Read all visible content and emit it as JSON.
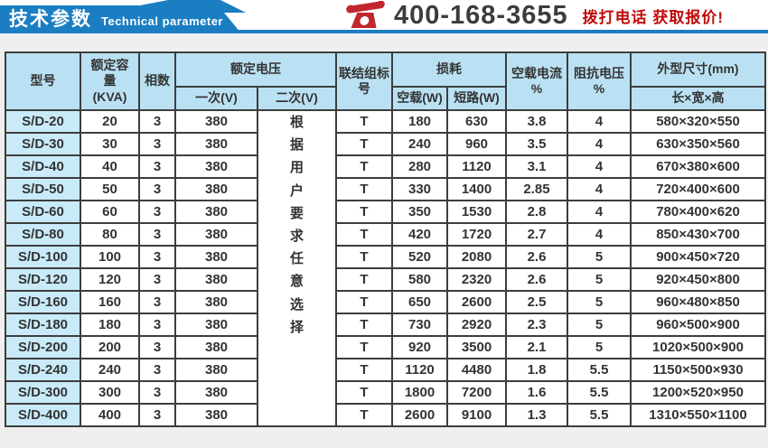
{
  "banner": {
    "title_zh": "技术参数",
    "title_en": "Technical parameter"
  },
  "contact": {
    "phone": "400-168-3655",
    "cta": "拨打电话 获取报价!"
  },
  "colors": {
    "banner_blue": "#1b7ec2",
    "header_bg": "#bae1f3",
    "model_bg": "#c9eaf9",
    "cta_red": "#c00a0a",
    "phone_icon_red": "#c1272d",
    "border": "#3d3d3d"
  },
  "table": {
    "headers": {
      "model": "型号",
      "capacity": "额定容\n量\n(KVA)",
      "phases": "相数",
      "rated_voltage": "额定电压",
      "primary": "一次(V)",
      "secondary": "二次(V)",
      "connection": "联结组标\n号",
      "loss": "损耗",
      "no_load_w": "空载(W)",
      "short_circuit_w": "短路(W)",
      "no_load_current": "空载电流\n%",
      "impedance_voltage": "阻抗电压\n%",
      "dimensions": "外型尺寸(mm)",
      "lwh": "长×宽×高"
    },
    "secondary_note": "根据用户要求任意选择",
    "rows": [
      [
        "S/D-20",
        "20",
        "3",
        "380",
        "T",
        "180",
        "630",
        "3.8",
        "4",
        "580×320×550"
      ],
      [
        "S/D-30",
        "30",
        "3",
        "380",
        "T",
        "240",
        "960",
        "3.5",
        "4",
        "630×350×560"
      ],
      [
        "S/D-40",
        "40",
        "3",
        "380",
        "T",
        "280",
        "1120",
        "3.1",
        "4",
        "670×380×600"
      ],
      [
        "S/D-50",
        "50",
        "3",
        "380",
        "T",
        "330",
        "1400",
        "2.85",
        "4",
        "720×400×600"
      ],
      [
        "S/D-60",
        "60",
        "3",
        "380",
        "T",
        "350",
        "1530",
        "2.8",
        "4",
        "780×400×620"
      ],
      [
        "S/D-80",
        "80",
        "3",
        "380",
        "T",
        "420",
        "1720",
        "2.7",
        "4",
        "850×430×700"
      ],
      [
        "S/D-100",
        "100",
        "3",
        "380",
        "T",
        "520",
        "2080",
        "2.6",
        "5",
        "900×450×720"
      ],
      [
        "S/D-120",
        "120",
        "3",
        "380",
        "T",
        "580",
        "2320",
        "2.6",
        "5",
        "920×450×800"
      ],
      [
        "S/D-160",
        "160",
        "3",
        "380",
        "T",
        "650",
        "2600",
        "2.5",
        "5",
        "960×480×850"
      ],
      [
        "S/D-180",
        "180",
        "3",
        "380",
        "T",
        "730",
        "2920",
        "2.3",
        "5",
        "960×500×900"
      ],
      [
        "S/D-200",
        "200",
        "3",
        "380",
        "T",
        "920",
        "3500",
        "2.1",
        "5",
        "1020×500×900"
      ],
      [
        "S/D-240",
        "240",
        "3",
        "380",
        "T",
        "1120",
        "4480",
        "1.8",
        "5.5",
        "1150×500×930"
      ],
      [
        "S/D-300",
        "300",
        "3",
        "380",
        "T",
        "1800",
        "7200",
        "1.6",
        "5.5",
        "1200×520×950"
      ],
      [
        "S/D-400",
        "400",
        "3",
        "380",
        "T",
        "2600",
        "9100",
        "1.3",
        "5.5",
        "1310×550×1100"
      ]
    ]
  }
}
